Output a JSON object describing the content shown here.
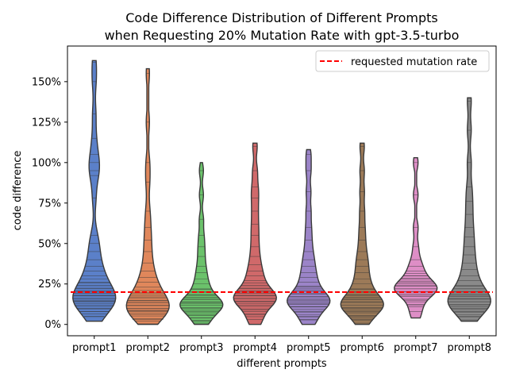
{
  "chart_data": {
    "type": "violin",
    "title_line1": "Code Difference Distribution of Different Prompts",
    "title_line2": "when Requesting 20% Mutation Rate with gpt-3.5-turbo",
    "xlabel": "different prompts",
    "ylabel": "code difference",
    "yticks": [
      "0%",
      "25%",
      "50%",
      "75%",
      "100%",
      "125%",
      "150%"
    ],
    "ytick_values": [
      0,
      25,
      50,
      75,
      100,
      125,
      150
    ],
    "ylim": [
      -7,
      172
    ],
    "reference_line": {
      "label": "requested mutation rate",
      "value": 20,
      "color": "#ff0000"
    },
    "legend_position": "top-right",
    "categories": [
      "prompt1",
      "prompt2",
      "prompt3",
      "prompt4",
      "prompt5",
      "prompt6",
      "prompt7",
      "prompt8"
    ],
    "series": [
      {
        "category": "prompt1",
        "color": "#5b80c9",
        "min": 2,
        "max": 163,
        "mode": 16,
        "values": [
          2,
          5,
          8,
          10,
          12,
          14,
          15,
          16,
          18,
          20,
          22,
          24,
          26,
          28,
          30,
          33,
          36,
          40,
          45,
          50,
          55,
          78,
          92,
          95,
          100,
          105,
          115,
          130,
          150,
          162
        ]
      },
      {
        "category": "prompt2",
        "color": "#e0875b",
        "min": 0,
        "max": 158,
        "mode": 10,
        "values": [
          0,
          3,
          6,
          8,
          9,
          10,
          12,
          14,
          15,
          17,
          19,
          21,
          23,
          26,
          29,
          33,
          38,
          45,
          52,
          60,
          70,
          88,
          100,
          125,
          155
        ]
      },
      {
        "category": "prompt3",
        "color": "#6bc26b",
        "min": 0,
        "max": 100,
        "mode": 12,
        "values": [
          0,
          2,
          4,
          6,
          8,
          10,
          12,
          13,
          14,
          16,
          18,
          20,
          22,
          25,
          28,
          32,
          36,
          42,
          48,
          55,
          65,
          80,
          95
        ]
      },
      {
        "category": "prompt4",
        "color": "#d0696a",
        "min": 0,
        "max": 112,
        "mode": 16,
        "values": [
          0,
          3,
          6,
          9,
          12,
          14,
          16,
          18,
          20,
          22,
          24,
          27,
          30,
          33,
          37,
          42,
          48,
          55,
          62,
          70,
          78,
          85,
          95,
          110
        ]
      },
      {
        "category": "prompt5",
        "color": "#9b84c8",
        "min": 0,
        "max": 108,
        "mode": 14,
        "values": [
          0,
          3,
          5,
          8,
          11,
          13,
          15,
          17,
          19,
          21,
          23,
          26,
          29,
          32,
          36,
          40,
          45,
          52,
          60,
          70,
          82,
          95,
          105
        ]
      },
      {
        "category": "prompt6",
        "color": "#9c7a58",
        "min": 0,
        "max": 112,
        "mode": 12,
        "values": [
          0,
          3,
          5,
          8,
          10,
          12,
          14,
          16,
          18,
          20,
          22,
          25,
          28,
          32,
          36,
          40,
          45,
          52,
          60,
          70,
          82,
          95,
          110
        ]
      },
      {
        "category": "prompt7",
        "color": "#de8ec6",
        "min": 4,
        "max": 103,
        "mode": 22,
        "values": [
          4,
          8,
          12,
          15,
          18,
          20,
          22,
          24,
          26,
          28,
          30,
          33,
          36,
          40,
          48,
          60,
          80,
          100
        ]
      },
      {
        "category": "prompt8",
        "color": "#8a8a8a",
        "min": 2,
        "max": 140,
        "mode": 14,
        "values": [
          2,
          5,
          8,
          10,
          12,
          14,
          16,
          18,
          20,
          22,
          24,
          27,
          30,
          34,
          38,
          43,
          48,
          54,
          60,
          68,
          76,
          85,
          100,
          120,
          138
        ]
      }
    ]
  }
}
